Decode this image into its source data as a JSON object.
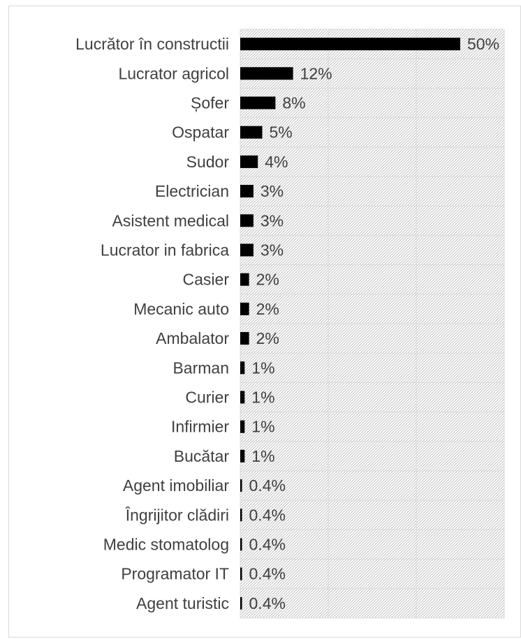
{
  "chart_data": {
    "type": "bar",
    "orientation": "horizontal",
    "title": "",
    "xlabel": "",
    "ylabel": "",
    "xlim": [
      0,
      0.6
    ],
    "grid": true,
    "legend": "none",
    "bar_color": "#000000",
    "grid_color": "#d9d9d9",
    "categories": [
      "Lucrător în constructii",
      "Lucrator agricol",
      "Șofer",
      "Ospatar",
      "Sudor",
      "Electrician",
      "Asistent medical",
      "Lucrator in fabrica",
      "Casier",
      "Mecanic auto",
      "Ambalator",
      "Barman",
      "Curier",
      "Infirmier",
      "Bucătar",
      "Agent imobiliar",
      "Îngrijitor clădiri",
      "Medic stomatolog",
      "Programator IT",
      "Agent turistic"
    ],
    "values": [
      0.5,
      0.12,
      0.08,
      0.05,
      0.04,
      0.03,
      0.03,
      0.03,
      0.02,
      0.02,
      0.02,
      0.01,
      0.01,
      0.01,
      0.01,
      0.004,
      0.004,
      0.004,
      0.004,
      0.004
    ],
    "value_labels": [
      "50%",
      "12%",
      "8%",
      "5%",
      "4%",
      "3%",
      "3%",
      "3%",
      "2%",
      "2%",
      "2%",
      "1%",
      "1%",
      "1%",
      "1%",
      "0.4%",
      "0.4%",
      "0.4%",
      "0.4%",
      "0.4%"
    ]
  }
}
